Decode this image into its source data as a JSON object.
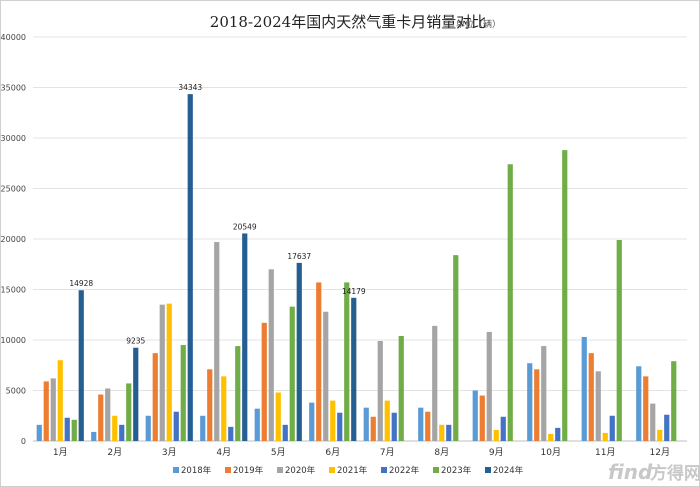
{
  "chart_data": {
    "type": "bar",
    "title": "2018-2024年国内天然气重卡月销量对比",
    "unit": "单位（辆）",
    "ylim": [
      0,
      40000
    ],
    "yticks": [
      0,
      5000,
      10000,
      15000,
      20000,
      25000,
      30000,
      35000,
      40000
    ],
    "grid": true,
    "legend_position": "bottom",
    "categories": [
      "1月",
      "2月",
      "3月",
      "4月",
      "5月",
      "6月",
      "7月",
      "8月",
      "9月",
      "10月",
      "11月",
      "12月"
    ],
    "series": [
      {
        "name": "2018年",
        "color": "#5b9bd5",
        "values": [
          1600,
          900,
          2500,
          2500,
          3200,
          3800,
          3300,
          3300,
          5000,
          7700,
          10300,
          7400
        ]
      },
      {
        "name": "2019年",
        "color": "#ed7d31",
        "values": [
          5900,
          4600,
          8700,
          7100,
          11700,
          15700,
          2400,
          2900,
          4500,
          7100,
          8700,
          6400
        ]
      },
      {
        "name": "2020年",
        "color": "#a5a5a5",
        "values": [
          6200,
          5200,
          13500,
          19700,
          17000,
          12800,
          9900,
          11400,
          10800,
          9400,
          6900,
          3700
        ]
      },
      {
        "name": "2021年",
        "color": "#ffc000",
        "values": [
          8000,
          2500,
          13600,
          6400,
          4800,
          4000,
          4000,
          1600,
          1100,
          700,
          800,
          1100
        ]
      },
      {
        "name": "2022年",
        "color": "#4472c4",
        "values": [
          2300,
          1600,
          2900,
          1400,
          1600,
          2800,
          2800,
          1600,
          2400,
          1300,
          2500,
          2600
        ]
      },
      {
        "name": "2023年",
        "color": "#70ad47",
        "values": [
          2100,
          5700,
          9500,
          9400,
          13300,
          15700,
          10400,
          18400,
          27400,
          28800,
          19900,
          7900
        ]
      },
      {
        "name": "2024年",
        "color": "#255e91",
        "values": [
          14928,
          9235,
          34343,
          20549,
          17637,
          14179,
          null,
          null,
          null,
          null,
          null,
          null
        ]
      }
    ],
    "data_labels": {
      "series": "2024年",
      "values": [
        "14928",
        "9235",
        "34343",
        "20549",
        "17637",
        "14179"
      ]
    }
  },
  "watermark": {
    "text": "方得网",
    "prefix": "find"
  }
}
